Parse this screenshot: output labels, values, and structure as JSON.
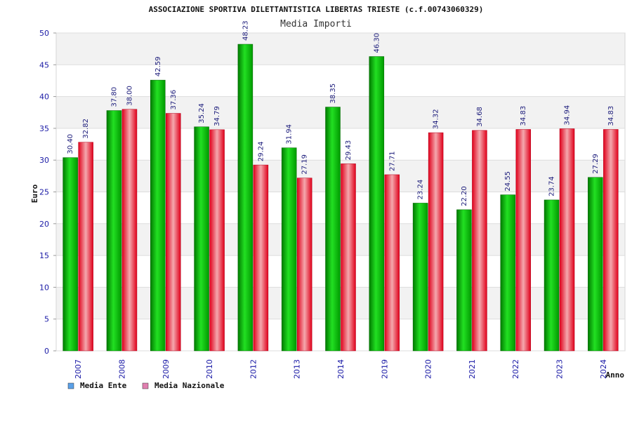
{
  "chart_data": {
    "type": "bar",
    "title": "ASSOCIAZIONE SPORTIVA DILETTANTISTICA LIBERTAS TRIESTE (c.f.00743060329)",
    "subtitle": "Media Importi",
    "xlabel": "Anno",
    "ylabel": "Euro",
    "ylim": [
      0,
      50
    ],
    "yticks": [
      0,
      5,
      10,
      15,
      20,
      25,
      30,
      35,
      40,
      45,
      50
    ],
    "grid": true,
    "legend_position": "bottom-left",
    "categories": [
      "2007",
      "2008",
      "2009",
      "2010",
      "2012",
      "2013",
      "2014",
      "2019",
      "2020",
      "2021",
      "2022",
      "2023",
      "2024"
    ],
    "series": [
      {
        "name": "Media Ente",
        "color": "#00b000",
        "legend_color": "#5aa0e8",
        "values": [
          30.4,
          37.8,
          42.59,
          35.24,
          48.23,
          31.94,
          38.35,
          46.3,
          23.24,
          22.2,
          24.55,
          23.74,
          27.29
        ]
      },
      {
        "name": "Media Nazionale",
        "color": "#ee1c2a",
        "legend_color": "#e17fb0",
        "values": [
          32.82,
          38.0,
          37.36,
          34.79,
          29.24,
          27.19,
          29.43,
          27.71,
          34.32,
          34.68,
          34.83,
          34.94,
          34.83
        ]
      }
    ]
  }
}
